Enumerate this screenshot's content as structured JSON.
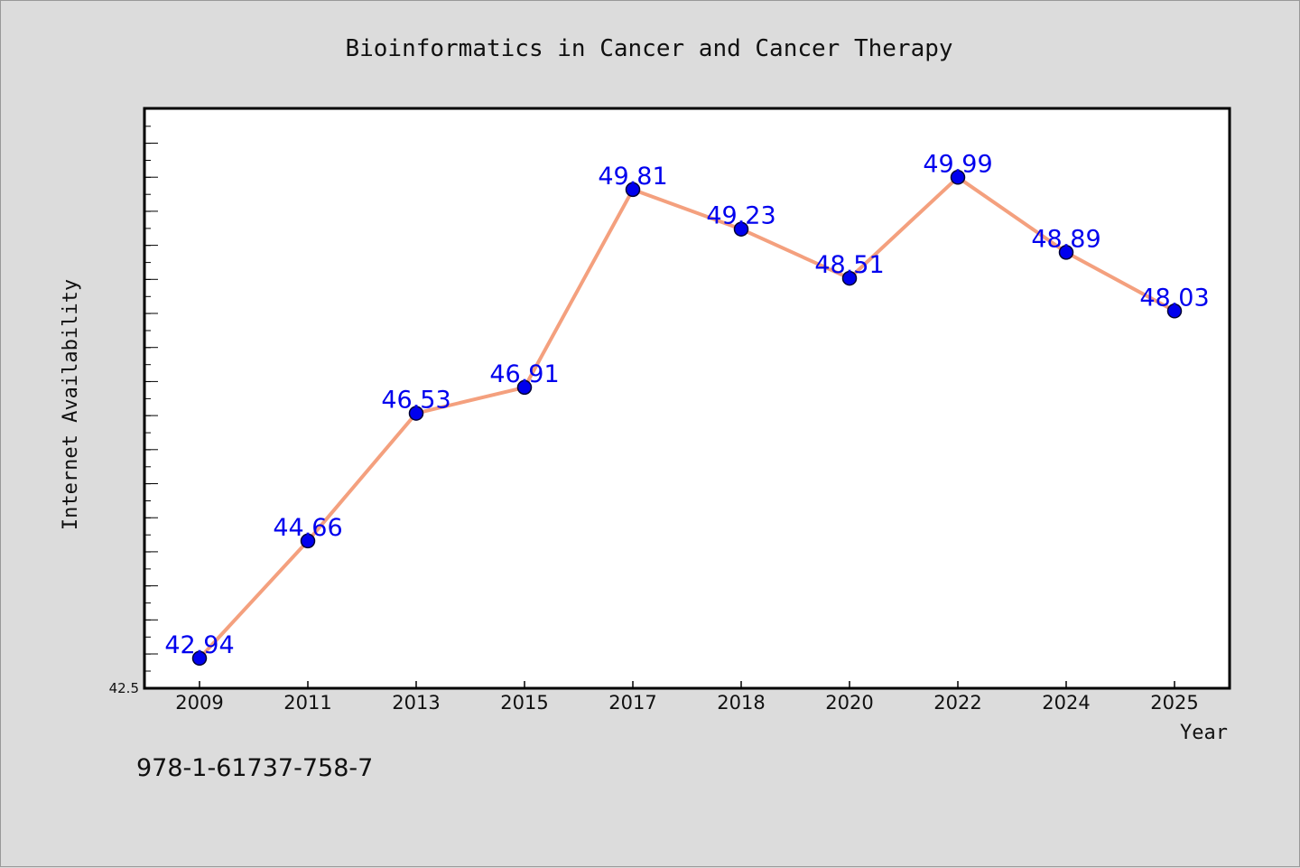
{
  "chart_data": {
    "type": "line",
    "title": "Bioinformatics in Cancer and Cancer Therapy",
    "xlabel": "Year",
    "ylabel": "Internet Availability",
    "categories": [
      "2009",
      "2011",
      "2013",
      "2015",
      "2017",
      "2018",
      "2020",
      "2022",
      "2024",
      "2025"
    ],
    "values": [
      42.94,
      44.66,
      46.53,
      46.91,
      49.81,
      49.23,
      48.51,
      49.99,
      48.89,
      48.03
    ],
    "data_labels": [
      "42.94",
      "44.66",
      "46.53",
      "46.91",
      "49.81",
      "49.23",
      "48.51",
      "49.99",
      "48.89",
      "48.03"
    ],
    "ylim": [
      42.5,
      51.0
    ],
    "y_tick_labels": [
      "42.5"
    ],
    "grid": false,
    "legend": "none",
    "colors": {
      "line": "#f4a07e",
      "marker_fill": "#0000ee",
      "marker_edge": "#000033",
      "data_label": "#0000ee",
      "plot_background": "#ffffff",
      "figure_background": "#dcdcdc"
    }
  },
  "caption": "978-1-61737-758-7"
}
